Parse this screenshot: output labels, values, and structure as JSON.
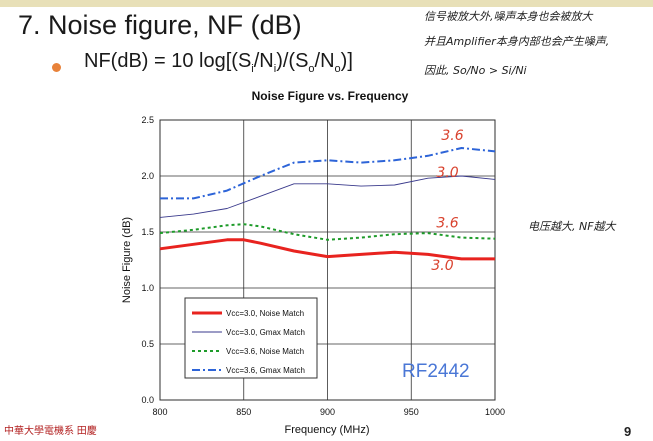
{
  "slide": {
    "title": "7.  Noise figure, NF (dB)",
    "formula": {
      "prefix": "NF(dB) = 10 log[(S",
      "sub1": "i",
      "mid1": "/N",
      "sub2": "i",
      "mid2": ")/(S",
      "sub3": "o",
      "mid3": "/N",
      "sub4": "o",
      "suffix": ")]"
    },
    "notes": {
      "line1": "信号被放大外,噪声本身也会被放大",
      "line2": "并且Amplifier本身内部也会产生噪声,",
      "line3": "因此, So/No > Si/Ni",
      "side": "电压越大, NF越大"
    },
    "footer": "中華大學電機系 田慶",
    "page": "9"
  },
  "chart_data": {
    "type": "line",
    "title": "Noise Figure vs. Frequency",
    "xlabel": "Frequency (MHz)",
    "ylabel": "Noise Figure (dB)",
    "xlim": [
      800,
      1000
    ],
    "ylim": [
      0.0,
      2.5
    ],
    "xticks": [
      "800",
      "850",
      "900",
      "950",
      "1000"
    ],
    "yticks": [
      "0.0",
      "0.5",
      "1.0",
      "1.5",
      "2.0",
      "2.5"
    ],
    "grid": true,
    "legend_position": "bottom-left",
    "watermark": "RF2442",
    "series": [
      {
        "name": "Vcc=3.0, Noise Match",
        "color": "#e8231f",
        "style": "solid-thick",
        "x": [
          800,
          820,
          840,
          850,
          860,
          880,
          900,
          920,
          940,
          960,
          980,
          1000
        ],
        "y": [
          1.35,
          1.39,
          1.43,
          1.43,
          1.4,
          1.33,
          1.28,
          1.3,
          1.32,
          1.3,
          1.26,
          1.26
        ]
      },
      {
        "name": "Vcc=3.0, Gmax Match",
        "color": "#3a3a8c",
        "style": "solid-thin",
        "x": [
          800,
          820,
          840,
          860,
          880,
          900,
          920,
          940,
          960,
          980,
          1000
        ],
        "y": [
          1.63,
          1.66,
          1.71,
          1.82,
          1.93,
          1.93,
          1.91,
          1.92,
          1.98,
          2.0,
          1.97
        ]
      },
      {
        "name": "Vcc=3.6, Noise Match",
        "color": "#1e9b2a",
        "style": "dotted",
        "x": [
          800,
          820,
          840,
          850,
          860,
          880,
          900,
          920,
          940,
          960,
          980,
          1000
        ],
        "y": [
          1.49,
          1.52,
          1.56,
          1.57,
          1.55,
          1.48,
          1.43,
          1.45,
          1.48,
          1.49,
          1.45,
          1.44
        ]
      },
      {
        "name": "Vcc=3.6, Gmax Match",
        "color": "#2d64d8",
        "style": "dash-dot",
        "x": [
          800,
          820,
          840,
          860,
          880,
          900,
          920,
          940,
          960,
          980,
          1000
        ],
        "y": [
          1.8,
          1.8,
          1.87,
          2.0,
          2.12,
          2.14,
          2.12,
          2.14,
          2.18,
          2.25,
          2.22
        ]
      }
    ],
    "annotations": [
      {
        "text": "3.6",
        "x": 968,
        "y": 2.32,
        "color": "#d9432f"
      },
      {
        "text": "3.0",
        "x": 965,
        "y": 1.99,
        "color": "#d9432f"
      },
      {
        "text": "3.6",
        "x": 965,
        "y": 1.54,
        "color": "#d9432f"
      },
      {
        "text": "3.0",
        "x": 962,
        "y": 1.16,
        "color": "#d9432f"
      }
    ]
  }
}
